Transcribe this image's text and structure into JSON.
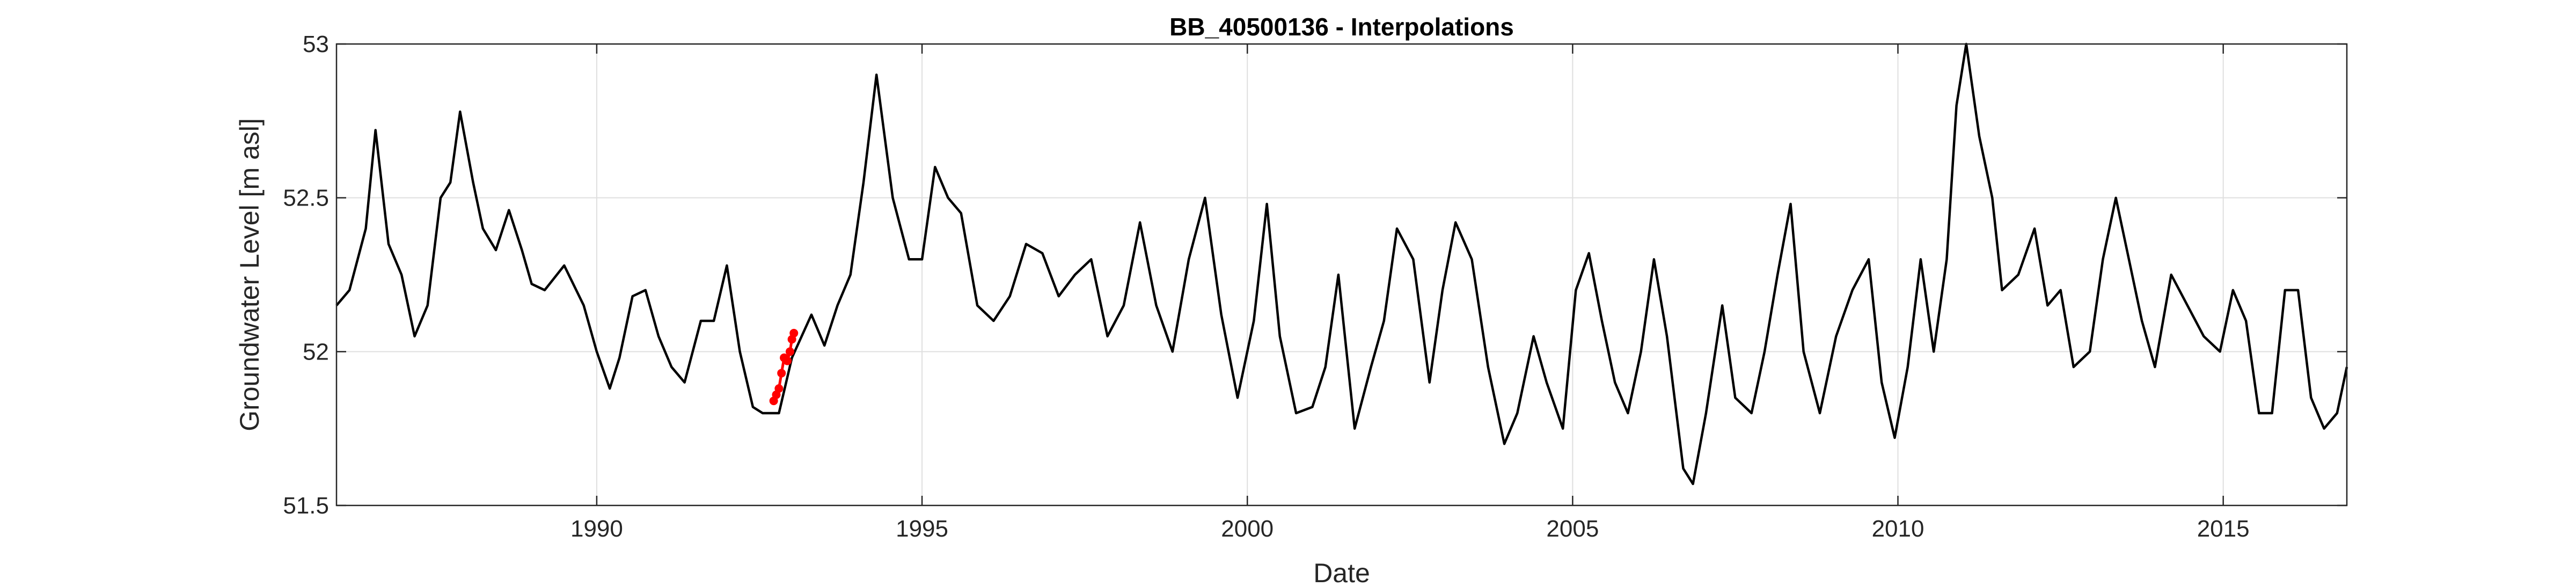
{
  "chart_data": {
    "type": "line",
    "title": "BB_40500136 - Interpolations",
    "xlabel": "Date",
    "ylabel": "Groundwater Level [m asl]",
    "xlim": [
      1986.0,
      2016.9
    ],
    "ylim": [
      51.5,
      53.0
    ],
    "xticks": [
      1990,
      1995,
      2000,
      2005,
      2010,
      2015
    ],
    "yticks": [
      51.5,
      52,
      52.5,
      53
    ],
    "xtick_labels": [
      "1990",
      "1995",
      "2000",
      "2005",
      "2010",
      "2015"
    ],
    "ytick_labels": [
      "51.5",
      "52",
      "52.5",
      "53"
    ],
    "grid": true,
    "colors": {
      "observed": "#000000",
      "interpolated": "#ff0000",
      "grid": "#dfdfdf",
      "axes": "#262626"
    },
    "series": [
      {
        "style": "line",
        "color": "#000000",
        "points": [
          [
            1986.0,
            52.15
          ],
          [
            1986.2,
            52.2
          ],
          [
            1986.45,
            52.4
          ],
          [
            1986.6,
            52.72
          ],
          [
            1986.8,
            52.35
          ],
          [
            1987.0,
            52.25
          ],
          [
            1987.2,
            52.05
          ],
          [
            1987.4,
            52.15
          ],
          [
            1987.6,
            52.5
          ],
          [
            1987.75,
            52.55
          ],
          [
            1987.9,
            52.78
          ],
          [
            1988.1,
            52.55
          ],
          [
            1988.25,
            52.4
          ],
          [
            1988.45,
            52.33
          ],
          [
            1988.65,
            52.46
          ],
          [
            1988.85,
            52.33
          ],
          [
            1989.0,
            52.22
          ],
          [
            1989.2,
            52.2
          ],
          [
            1989.5,
            52.28
          ],
          [
            1989.8,
            52.15
          ],
          [
            1990.0,
            52.0
          ],
          [
            1990.2,
            51.88
          ],
          [
            1990.35,
            51.98
          ],
          [
            1990.55,
            52.18
          ],
          [
            1990.75,
            52.2
          ],
          [
            1990.95,
            52.05
          ],
          [
            1991.15,
            51.95
          ],
          [
            1991.35,
            51.9
          ],
          [
            1991.6,
            52.1
          ],
          [
            1991.8,
            52.1
          ],
          [
            1992.0,
            52.28
          ],
          [
            1992.2,
            52.0
          ],
          [
            1992.4,
            51.82
          ],
          [
            1992.55,
            51.8
          ],
          [
            1992.8,
            51.8
          ],
          [
            1993.0,
            51.98
          ],
          [
            1993.3,
            52.12
          ],
          [
            1993.5,
            52.02
          ],
          [
            1993.7,
            52.15
          ],
          [
            1993.9,
            52.25
          ],
          [
            1994.1,
            52.55
          ],
          [
            1994.3,
            52.9
          ],
          [
            1994.55,
            52.5
          ],
          [
            1994.8,
            52.3
          ],
          [
            1995.0,
            52.3
          ],
          [
            1995.2,
            52.6
          ],
          [
            1995.4,
            52.5
          ],
          [
            1995.6,
            52.45
          ],
          [
            1995.85,
            52.15
          ],
          [
            1996.1,
            52.1
          ],
          [
            1996.35,
            52.18
          ],
          [
            1996.6,
            52.35
          ],
          [
            1996.85,
            52.32
          ],
          [
            1997.1,
            52.18
          ],
          [
            1997.35,
            52.25
          ],
          [
            1997.6,
            52.3
          ],
          [
            1997.85,
            52.05
          ],
          [
            1998.1,
            52.15
          ],
          [
            1998.35,
            52.42
          ],
          [
            1998.6,
            52.15
          ],
          [
            1998.85,
            52.0
          ],
          [
            1999.1,
            52.3
          ],
          [
            1999.35,
            52.5
          ],
          [
            1999.6,
            52.12
          ],
          [
            1999.85,
            51.85
          ],
          [
            2000.1,
            52.1
          ],
          [
            2000.3,
            52.48
          ],
          [
            2000.5,
            52.05
          ],
          [
            2000.75,
            51.8
          ],
          [
            2001.0,
            51.82
          ],
          [
            2001.2,
            51.95
          ],
          [
            2001.4,
            52.25
          ],
          [
            2001.65,
            51.75
          ],
          [
            2001.9,
            51.95
          ],
          [
            2002.1,
            52.1
          ],
          [
            2002.3,
            52.4
          ],
          [
            2002.55,
            52.3
          ],
          [
            2002.8,
            51.9
          ],
          [
            2003.0,
            52.2
          ],
          [
            2003.2,
            52.42
          ],
          [
            2003.45,
            52.3
          ],
          [
            2003.7,
            51.95
          ],
          [
            2003.95,
            51.7
          ],
          [
            2004.15,
            51.8
          ],
          [
            2004.4,
            52.05
          ],
          [
            2004.6,
            51.9
          ],
          [
            2004.85,
            51.75
          ],
          [
            2005.05,
            52.2
          ],
          [
            2005.25,
            52.32
          ],
          [
            2005.45,
            52.1
          ],
          [
            2005.65,
            51.9
          ],
          [
            2005.85,
            51.8
          ],
          [
            2006.05,
            52.0
          ],
          [
            2006.25,
            52.3
          ],
          [
            2006.45,
            52.05
          ],
          [
            2006.7,
            51.62
          ],
          [
            2006.85,
            51.57
          ],
          [
            2007.05,
            51.8
          ],
          [
            2007.3,
            52.15
          ],
          [
            2007.5,
            51.85
          ],
          [
            2007.75,
            51.8
          ],
          [
            2007.95,
            52.0
          ],
          [
            2008.15,
            52.25
          ],
          [
            2008.35,
            52.48
          ],
          [
            2008.55,
            52.0
          ],
          [
            2008.8,
            51.8
          ],
          [
            2009.05,
            52.05
          ],
          [
            2009.3,
            52.2
          ],
          [
            2009.55,
            52.3
          ],
          [
            2009.75,
            51.9
          ],
          [
            2009.95,
            51.72
          ],
          [
            2010.15,
            51.95
          ],
          [
            2010.35,
            52.3
          ],
          [
            2010.55,
            52.0
          ],
          [
            2010.75,
            52.3
          ],
          [
            2010.9,
            52.8
          ],
          [
            2011.05,
            53.0
          ],
          [
            2011.25,
            52.7
          ],
          [
            2011.45,
            52.5
          ],
          [
            2011.6,
            52.2
          ],
          [
            2011.85,
            52.25
          ],
          [
            2012.1,
            52.4
          ],
          [
            2012.3,
            52.15
          ],
          [
            2012.5,
            52.2
          ],
          [
            2012.7,
            51.95
          ],
          [
            2012.95,
            52.0
          ],
          [
            2013.15,
            52.3
          ],
          [
            2013.35,
            52.5
          ],
          [
            2013.55,
            52.3
          ],
          [
            2013.75,
            52.1
          ],
          [
            2013.95,
            51.95
          ],
          [
            2014.2,
            52.25
          ],
          [
            2014.45,
            52.15
          ],
          [
            2014.7,
            52.05
          ],
          [
            2014.95,
            52.0
          ],
          [
            2015.15,
            52.2
          ],
          [
            2015.35,
            52.1
          ],
          [
            2015.55,
            51.8
          ],
          [
            2015.75,
            51.8
          ],
          [
            2015.95,
            52.2
          ],
          [
            2016.15,
            52.2
          ],
          [
            2016.35,
            51.85
          ],
          [
            2016.55,
            51.75
          ],
          [
            2016.75,
            51.8
          ],
          [
            2016.9,
            51.95
          ]
        ]
      },
      {
        "style": "markers",
        "color": "#ff0000",
        "points": [
          [
            1992.72,
            51.84
          ],
          [
            1992.76,
            51.86
          ],
          [
            1992.8,
            51.88
          ],
          [
            1992.84,
            51.93
          ],
          [
            1992.88,
            51.98
          ],
          [
            1992.93,
            51.97
          ],
          [
            1992.97,
            52.0
          ],
          [
            1993.0,
            52.04
          ],
          [
            1993.03,
            52.06
          ]
        ]
      }
    ]
  }
}
